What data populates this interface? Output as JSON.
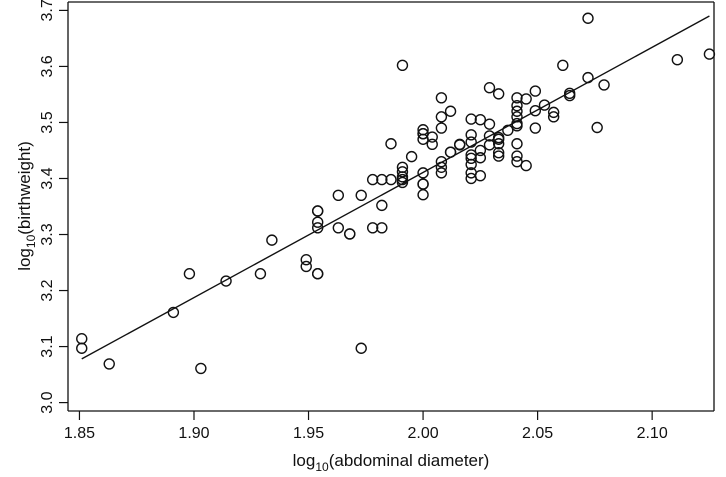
{
  "chart_data": {
    "type": "scatter",
    "xlabel": "log10(abdominal diameter)",
    "ylabel": "log10(birthweight)",
    "xlim": [
      1.845,
      2.127
    ],
    "ylim": [
      2.985,
      3.715
    ],
    "x_ticks": [
      "1.85",
      "1.90",
      "1.95",
      "2.00",
      "2.05",
      "2.10"
    ],
    "y_ticks": [
      "3.0",
      "3.1",
      "3.2",
      "3.3",
      "3.4",
      "3.5",
      "3.6",
      "3.7"
    ],
    "grid": false,
    "legend": "none",
    "fit_line": {
      "x": [
        1.851,
        2.125
      ],
      "y": [
        3.078,
        3.69
      ]
    },
    "points": {
      "x": [
        1.851,
        1.851,
        1.863,
        1.891,
        1.898,
        1.903,
        1.914,
        1.929,
        1.934,
        1.949,
        1.949,
        1.954,
        1.954,
        1.954,
        1.954,
        1.954,
        1.954,
        1.963,
        1.963,
        1.968,
        1.968,
        1.973,
        1.973,
        1.978,
        1.982,
        1.982,
        1.982,
        1.978,
        1.986,
        1.986,
        1.991,
        1.991,
        1.991,
        1.991,
        1.991,
        1.995,
        2.0,
        2.0,
        2.0,
        2.0,
        2.0,
        2.0,
        2.0,
        2.0,
        2.004,
        2.004,
        2.008,
        2.008,
        2.008,
        2.008,
        2.008,
        2.008,
        2.012,
        2.012,
        2.012,
        2.016,
        2.016,
        2.021,
        2.021,
        2.021,
        2.021,
        2.021,
        2.021,
        2.021,
        2.021,
        2.025,
        2.025,
        2.025,
        2.025,
        2.029,
        2.029,
        2.029,
        2.029,
        2.033,
        2.033,
        2.033,
        2.033,
        2.033,
        2.033,
        2.037,
        2.041,
        2.041,
        2.041,
        2.041,
        2.041,
        2.041,
        2.041,
        2.041,
        2.041,
        2.045,
        2.045,
        2.049,
        2.049,
        2.049,
        2.053,
        2.057,
        2.057,
        2.061,
        2.064,
        2.064,
        2.072,
        2.072,
        2.076,
        2.079,
        2.111,
        2.125,
        1.991
      ],
      "y": [
        3.114,
        3.097,
        3.069,
        3.161,
        3.23,
        3.061,
        3.217,
        3.23,
        3.29,
        3.255,
        3.243,
        3.23,
        3.23,
        3.342,
        3.342,
        3.322,
        3.312,
        3.37,
        3.312,
        3.301,
        3.301,
        3.097,
        3.37,
        3.312,
        3.398,
        3.352,
        3.312,
        3.398,
        3.462,
        3.398,
        3.398,
        3.393,
        3.412,
        3.42,
        3.403,
        3.439,
        3.371,
        3.39,
        3.39,
        3.41,
        3.47,
        3.48,
        3.48,
        3.487,
        3.461,
        3.474,
        3.544,
        3.51,
        3.49,
        3.43,
        3.42,
        3.41,
        3.52,
        3.447,
        3.447,
        3.461,
        3.46,
        3.4,
        3.41,
        3.425,
        3.436,
        3.442,
        3.465,
        3.478,
        3.506,
        3.405,
        3.437,
        3.45,
        3.505,
        3.562,
        3.497,
        3.476,
        3.46,
        3.551,
        3.473,
        3.47,
        3.462,
        3.446,
        3.44,
        3.486,
        3.544,
        3.53,
        3.52,
        3.51,
        3.494,
        3.462,
        3.44,
        3.43,
        3.498,
        3.542,
        3.423,
        3.556,
        3.521,
        3.49,
        3.531,
        3.51,
        3.518,
        3.602,
        3.552,
        3.548,
        3.686,
        3.58,
        3.491,
        3.567,
        3.612,
        3.622,
        3.602
      ]
    }
  }
}
